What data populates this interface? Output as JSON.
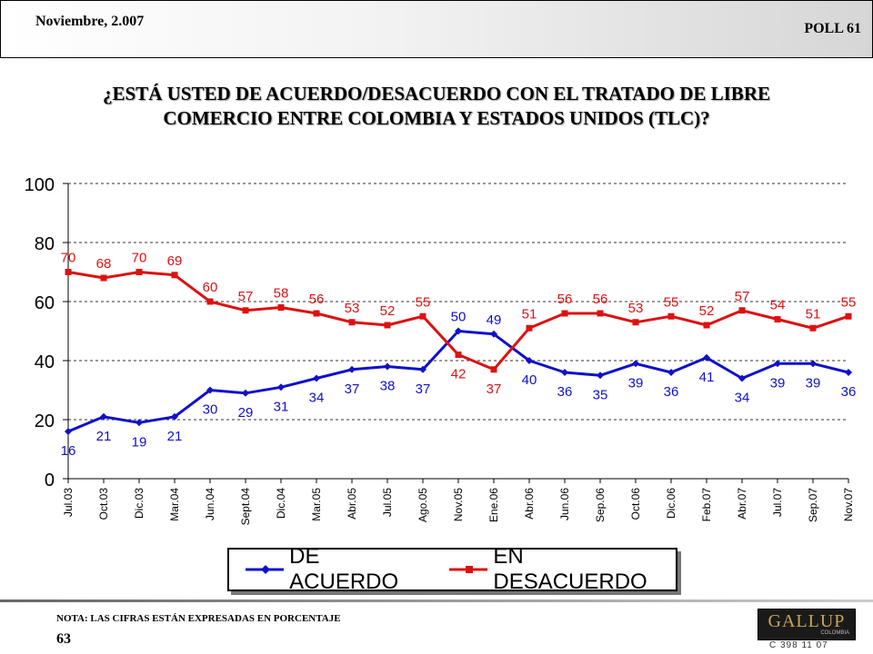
{
  "header": {
    "date": "Noviembre, 2.007",
    "poll": "POLL 61"
  },
  "title": {
    "line1": "¿ESTÁ USTED DE ACUERDO/DESACUERDO CON EL TRATADO DE LIBRE",
    "line2": "COMERCIO ENTRE COLOMBIA Y ESTADOS UNIDOS (TLC)?"
  },
  "chart_data": {
    "type": "line",
    "categories": [
      "Jul.03",
      "Oct.03",
      "Dic.03",
      "Mar.04",
      "Jun.04",
      "Sept.04",
      "Dic.04",
      "Mar.05",
      "Abr.05",
      "Jul.05",
      "Ago.05",
      "Nov.05",
      "Ene.06",
      "Abr.06",
      "Jun.06",
      "Sep.06",
      "Oct.06",
      "Dic.06",
      "Feb.07",
      "Abr.07",
      "Jul.07",
      "Sep.07",
      "Nov.07"
    ],
    "series": [
      {
        "name": "DE ACUERDO",
        "color": "#1010cc",
        "values": [
          16,
          21,
          19,
          21,
          30,
          29,
          31,
          34,
          37,
          38,
          37,
          50,
          49,
          40,
          36,
          35,
          39,
          36,
          41,
          34,
          39,
          39,
          36
        ]
      },
      {
        "name": "EN DESACUERDO",
        "color": "#dd1111",
        "values": [
          70,
          68,
          70,
          69,
          60,
          57,
          58,
          56,
          53,
          52,
          55,
          42,
          37,
          51,
          56,
          56,
          53,
          55,
          52,
          57,
          54,
          51,
          55
        ]
      }
    ],
    "yticks": [
      0,
      20,
      40,
      60,
      80,
      100
    ],
    "ylim": [
      0,
      100
    ],
    "grid": "horizontal dashed",
    "legend": "bottom"
  },
  "footer": {
    "note": "NOTA: LAS CIFRAS ESTÁN EXPRESADAS EN PORCENTAJE",
    "page": "63",
    "logo": "GALLUP",
    "logo_sub": "COLOMBIA",
    "code": "C 398 11 07"
  }
}
